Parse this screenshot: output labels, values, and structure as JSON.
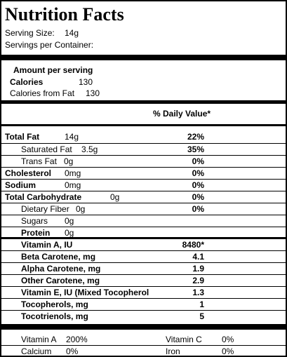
{
  "title": "Nutrition Facts",
  "serving_size_label": "Serving Size:",
  "serving_size_value": "14g",
  "servings_label": "Servings per Container:",
  "amount_header": "Amount per serving",
  "calories_label": "Calories",
  "calories_value": "130",
  "calories_fat_label": "Calories from Fat",
  "calories_fat_value": "130",
  "daily_value_header": "% Daily Value*",
  "rows": [
    {
      "label": "Total Fat",
      "amount": "14g",
      "pct": "22%"
    },
    {
      "label": "Saturated Fat",
      "amount": "3.5g",
      "pct": "35%"
    },
    {
      "label": "Trans Fat",
      "amount": "0g",
      "pct": "0%"
    },
    {
      "label": "Cholesterol",
      "amount": "0mg",
      "pct": "0%"
    },
    {
      "label": "Sodium",
      "amount": "0mg",
      "pct": "0%"
    },
    {
      "label": "Total Carbohydrate",
      "amount": "0g",
      "pct": "0%"
    },
    {
      "label": "Dietary Fiber",
      "amount": "0g",
      "pct": "0%"
    },
    {
      "label": "Sugars",
      "amount": "0g"
    },
    {
      "label": "Protein",
      "amount": "0g"
    }
  ],
  "extras": [
    {
      "label": "Vitamin A, IU",
      "value": "8480*"
    },
    {
      "label": "Beta Carotene, mg",
      "value": "4.1"
    },
    {
      "label": "Alpha Carotene, mg",
      "value": "1.9"
    },
    {
      "label": "Other Carotene, mg",
      "value": "2.9"
    },
    {
      "label": "Vitamin E, IU (Mixed Tocopherol",
      "value": "1.3"
    },
    {
      "label": "Tocopherols, mg",
      "value": "1"
    },
    {
      "label": "Tocotrienols, mg",
      "value": "5"
    }
  ],
  "footer": [
    {
      "label": "Vitamin A",
      "value": "200%"
    },
    {
      "label": "Vitamin C",
      "value": "0%"
    },
    {
      "label": "Calcium",
      "value": "0%"
    },
    {
      "label": "Iron",
      "value": "0%"
    }
  ]
}
